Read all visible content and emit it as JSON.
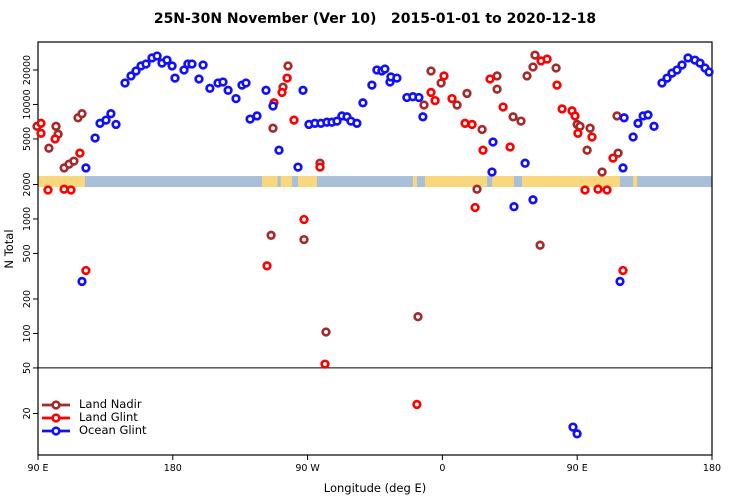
{
  "title": "25N-30N November (Ver 10)   2015-01-01 to 2020-12-18",
  "legend": {
    "items": [
      {
        "label": "Land Nadir",
        "color": "#A52A2A"
      },
      {
        "label": "Land Glint",
        "color": "#FF0000"
      },
      {
        "label": "Ocean Glint",
        "color": "#1010FF"
      }
    ]
  },
  "chart_data": {
    "type": "scatter",
    "title": "25N-30N November (Ver 10)   2015-01-01 to 2020-12-18",
    "xlabel": "Longitude (deg E)",
    "ylabel": "N Total",
    "x_axis": {
      "range_deg": [
        90,
        540
      ],
      "ticks": [
        {
          "deg": 90,
          "label": "90 E"
        },
        {
          "deg": 180,
          "label": "180"
        },
        {
          "deg": 270,
          "label": "90 W"
        },
        {
          "deg": 360,
          "label": "0"
        },
        {
          "deg": 450,
          "label": "90 E"
        },
        {
          "deg": 540,
          "label": "180"
        }
      ]
    },
    "y_axis": {
      "scale": "log",
      "ticks": [
        20,
        50,
        100,
        200,
        500,
        1000,
        2000,
        5000,
        10000,
        20000
      ],
      "range": [
        13,
        30000
      ]
    },
    "reference_line_n": 50,
    "map_band": {
      "n_range": [
        1900,
        2370
      ],
      "ocean_color": "#A9BED8",
      "land_color": "#F9D77C",
      "land_segments_deg": [
        [
          90,
          121.4
        ],
        [
          239.6,
          250
        ],
        [
          252,
          259.6
        ],
        [
          263.6,
          276.3
        ],
        [
          340.4,
          343
        ],
        [
          348.4,
          389.8
        ],
        [
          393.1,
          407.8
        ],
        [
          413.2,
          478.6
        ],
        [
          487.3,
          490
        ]
      ]
    },
    "series": [
      {
        "name": "Land Nadir",
        "color": "#A52A2A",
        "points": [
          [
            89.3,
            6450
          ],
          [
            97.3,
            4150
          ],
          [
            102,
            6450
          ],
          [
            103.4,
            5500
          ],
          [
            107.4,
            2790
          ],
          [
            110.7,
            3010
          ],
          [
            114,
            3200
          ],
          [
            116.7,
            7650
          ],
          [
            119.4,
            8300
          ],
          [
            246.9,
            6200
          ],
          [
            245.6,
            720
          ],
          [
            256.9,
            21700
          ],
          [
            253.6,
            14150
          ],
          [
            267.6,
            660
          ],
          [
            278.3,
            3070
          ],
          [
            282.3,
            103
          ],
          [
            343.7,
            140
          ],
          [
            352.4,
            19600
          ],
          [
            359.1,
            15400
          ],
          [
            347.7,
            9900
          ],
          [
            369.8,
            9900
          ],
          [
            376.4,
            12500
          ],
          [
            386.5,
            6050
          ],
          [
            383.1,
            1820
          ],
          [
            396.5,
            17750
          ],
          [
            396.5,
            13600
          ],
          [
            407.2,
            7800
          ],
          [
            412.5,
            7150
          ],
          [
            421.8,
            27000
          ],
          [
            420.5,
            21250
          ],
          [
            416.5,
            17750
          ],
          [
            435.9,
            20800
          ],
          [
            449.9,
            6700
          ],
          [
            451.9,
            6450
          ],
          [
            458.6,
            6200
          ],
          [
            456.6,
            3990
          ],
          [
            476.6,
            7950
          ],
          [
            477.3,
            3760
          ],
          [
            466.6,
            2570
          ],
          [
            425.2,
            590
          ]
        ]
      },
      {
        "name": "Land Glint",
        "color": "#FF0000",
        "points": [
          [
            92,
            6850
          ],
          [
            92,
            5600
          ],
          [
            101.4,
            5000
          ],
          [
            118,
            3760
          ],
          [
            96.7,
            1790
          ],
          [
            107.4,
            1820
          ],
          [
            112,
            1790
          ],
          [
            122,
            355
          ],
          [
            247.6,
            10350
          ],
          [
            256.3,
            17000
          ],
          [
            252.9,
            12750
          ],
          [
            260.9,
            7300
          ],
          [
            278.3,
            2840
          ],
          [
            267.6,
            990
          ],
          [
            242.9,
            390
          ],
          [
            281.6,
            54
          ],
          [
            343,
            24
          ],
          [
            361.1,
            17750
          ],
          [
            352.4,
            12750
          ],
          [
            355.1,
            10800
          ],
          [
            366.4,
            11250
          ],
          [
            375.1,
            6850
          ],
          [
            379.8,
            6700
          ],
          [
            387.1,
            3990
          ],
          [
            405.2,
            4250
          ],
          [
            381.8,
            1260
          ],
          [
            391.8,
            16700
          ],
          [
            400.5,
            9500
          ],
          [
            425.8,
            24000
          ],
          [
            429.9,
            24900
          ],
          [
            436.5,
            14750
          ],
          [
            439.9,
            9150
          ],
          [
            446.5,
            8800
          ],
          [
            448.5,
            7950
          ],
          [
            450.5,
            5600
          ],
          [
            459.9,
            5200
          ],
          [
            473.9,
            3400
          ],
          [
            455.2,
            1790
          ],
          [
            463.9,
            1820
          ],
          [
            469.9,
            1790
          ],
          [
            480.6,
            355
          ]
        ]
      },
      {
        "name": "Ocean Glint",
        "color": "#1010FF",
        "points": [
          [
            122,
            2790
          ],
          [
            128.1,
            5100
          ],
          [
            131.4,
            6850
          ],
          [
            135.4,
            7300
          ],
          [
            138.7,
            8300
          ],
          [
            142.1,
            6700
          ],
          [
            148.1,
            15400
          ],
          [
            152.1,
            17750
          ],
          [
            155.4,
            19600
          ],
          [
            158.8,
            21700
          ],
          [
            162.1,
            22550
          ],
          [
            166.1,
            25500
          ],
          [
            169.5,
            26500
          ],
          [
            172.8,
            23000
          ],
          [
            176.1,
            24400
          ],
          [
            179.5,
            21700
          ],
          [
            181.5,
            17000
          ],
          [
            187.5,
            20000
          ],
          [
            190.1,
            22550
          ],
          [
            192.8,
            22550
          ],
          [
            197.5,
            16700
          ],
          [
            200.2,
            22100
          ],
          [
            204.8,
            13850
          ],
          [
            210.2,
            15400
          ],
          [
            213.5,
            15700
          ],
          [
            216.9,
            13300
          ],
          [
            222.2,
            11250
          ],
          [
            226.2,
            14750
          ],
          [
            228.9,
            15400
          ],
          [
            231.6,
            7450
          ],
          [
            236.2,
            7950
          ],
          [
            242.2,
            13300
          ],
          [
            246.9,
            9700
          ],
          [
            250.9,
            3990
          ],
          [
            263.6,
            2840
          ],
          [
            266.9,
            13300
          ],
          [
            270.9,
            6700
          ],
          [
            274.9,
            6850
          ],
          [
            278.9,
            6850
          ],
          [
            282.9,
            7000
          ],
          [
            286.3,
            7000
          ],
          [
            289.6,
            7150
          ],
          [
            292.9,
            7950
          ],
          [
            296.3,
            7800
          ],
          [
            298.9,
            7150
          ],
          [
            302.9,
            6850
          ],
          [
            306.9,
            10350
          ],
          [
            312.9,
            14750
          ],
          [
            316.3,
            20000
          ],
          [
            319.6,
            19600
          ],
          [
            325,
            15700
          ],
          [
            321.6,
            20400
          ],
          [
            325.6,
            17400
          ],
          [
            329.6,
            17000
          ],
          [
            336.3,
            11500
          ],
          [
            340.3,
            11700
          ],
          [
            344.3,
            11500
          ],
          [
            347,
            7800
          ],
          [
            393.1,
            2570
          ],
          [
            393.8,
            4700
          ],
          [
            407.8,
            1280
          ],
          [
            420.5,
            1470
          ],
          [
            415.2,
            3070
          ],
          [
            481.3,
            7650
          ],
          [
            487.3,
            5200
          ],
          [
            490.6,
            6850
          ],
          [
            494,
            7950
          ],
          [
            497.3,
            8100
          ],
          [
            501.3,
            6450
          ],
          [
            480.6,
            2790
          ],
          [
            506.6,
            15400
          ],
          [
            510,
            17000
          ],
          [
            513.3,
            18800
          ],
          [
            516.6,
            20000
          ],
          [
            520,
            22100
          ],
          [
            524,
            25500
          ],
          [
            528.6,
            24400
          ],
          [
            532,
            23000
          ],
          [
            535.3,
            20800
          ],
          [
            538,
            19200
          ],
          [
            119.4,
            285
          ],
          [
            478.6,
            285
          ],
          [
            447.2,
            15.2
          ],
          [
            449.9,
            13.3
          ]
        ]
      }
    ]
  }
}
